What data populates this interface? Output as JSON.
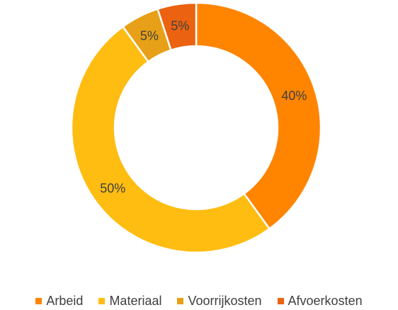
{
  "chart_data": {
    "type": "pie",
    "variant": "donut",
    "title": "",
    "categories": [
      "Arbeid",
      "Materiaal",
      "Voorrijkosten",
      "Afvoerkosten"
    ],
    "values": [
      40,
      50,
      5,
      5
    ],
    "labels": [
      "40%",
      "50%",
      "5%",
      "5%"
    ],
    "colors": [
      "#FF8400",
      "#FFBD12",
      "#E7A017",
      "#EB6210"
    ],
    "legend_position": "bottom",
    "grid": false
  }
}
